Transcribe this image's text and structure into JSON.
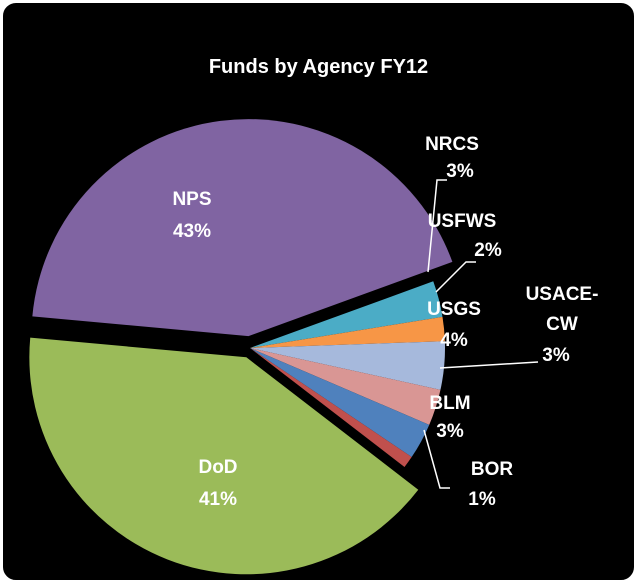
{
  "chart_data": {
    "type": "pie",
    "title": "Funds by Agency FY12",
    "categories": [
      "NRCS",
      "USFWS",
      "USGS",
      "USACE-CW",
      "BLM",
      "BOR",
      "DoD",
      "NPS"
    ],
    "values": [
      3,
      2,
      4,
      3,
      3,
      1,
      41,
      43
    ],
    "value_labels": [
      "3%",
      "2%",
      "4%",
      "3%",
      "3%",
      "1%",
      "41%",
      "43%"
    ],
    "colors": [
      "#4bacc6",
      "#f79646",
      "#a6b9dc",
      "#d99694",
      "#4f81bd",
      "#c0504d",
      "#9bbb59",
      "#8064a2"
    ]
  }
}
